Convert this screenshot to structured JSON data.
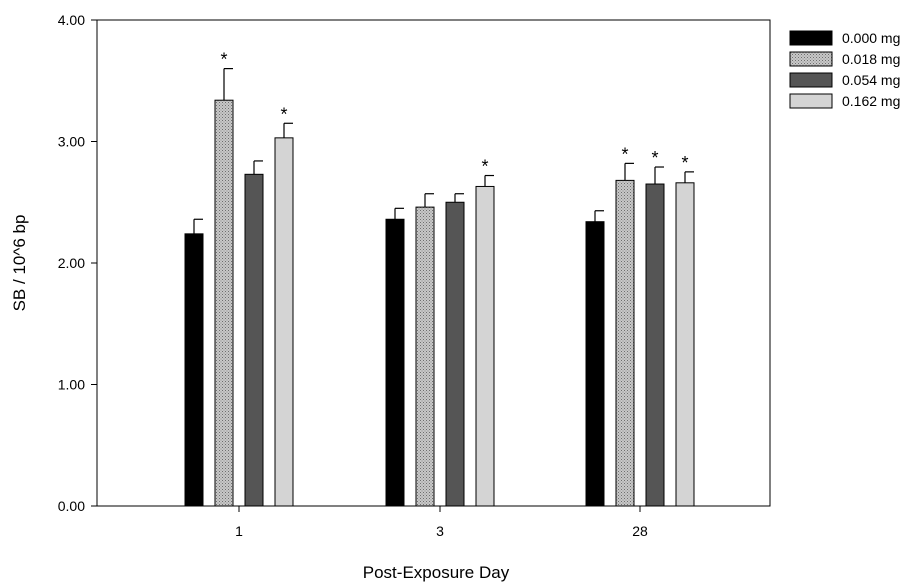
{
  "chart_data": {
    "type": "bar",
    "xlabel": "Post-Exposure Day",
    "ylabel": "SB / 10^6 bp",
    "ylim": [
      0,
      4
    ],
    "yticks": [
      "0.00",
      "1.00",
      "2.00",
      "3.00",
      "4.00"
    ],
    "categories": [
      "1",
      "3",
      "28"
    ],
    "series": [
      {
        "name": "0.000 mg",
        "color": "#000000",
        "pattern": "solid",
        "values": [
          2.24,
          2.36,
          2.34
        ],
        "errors": [
          0.12,
          0.09,
          0.09
        ],
        "significant": [
          false,
          false,
          false
        ]
      },
      {
        "name": "0.018 mg",
        "color": "#b4b4b4",
        "pattern": "dotted",
        "values": [
          3.34,
          2.46,
          2.68
        ],
        "errors": [
          0.26,
          0.11,
          0.14
        ],
        "significant": [
          true,
          false,
          true
        ]
      },
      {
        "name": "0.054 mg",
        "color": "#555555",
        "pattern": "solid",
        "values": [
          2.73,
          2.5,
          2.65
        ],
        "errors": [
          0.11,
          0.07,
          0.14
        ],
        "significant": [
          false,
          false,
          true
        ]
      },
      {
        "name": "0.162 mg",
        "color": "#d4d4d4",
        "pattern": "solid",
        "values": [
          3.03,
          2.63,
          2.66
        ],
        "errors": [
          0.12,
          0.09,
          0.09
        ],
        "significant": [
          true,
          true,
          true
        ]
      }
    ],
    "significance_marker": "*",
    "legend": "top-right",
    "grid": false
  }
}
